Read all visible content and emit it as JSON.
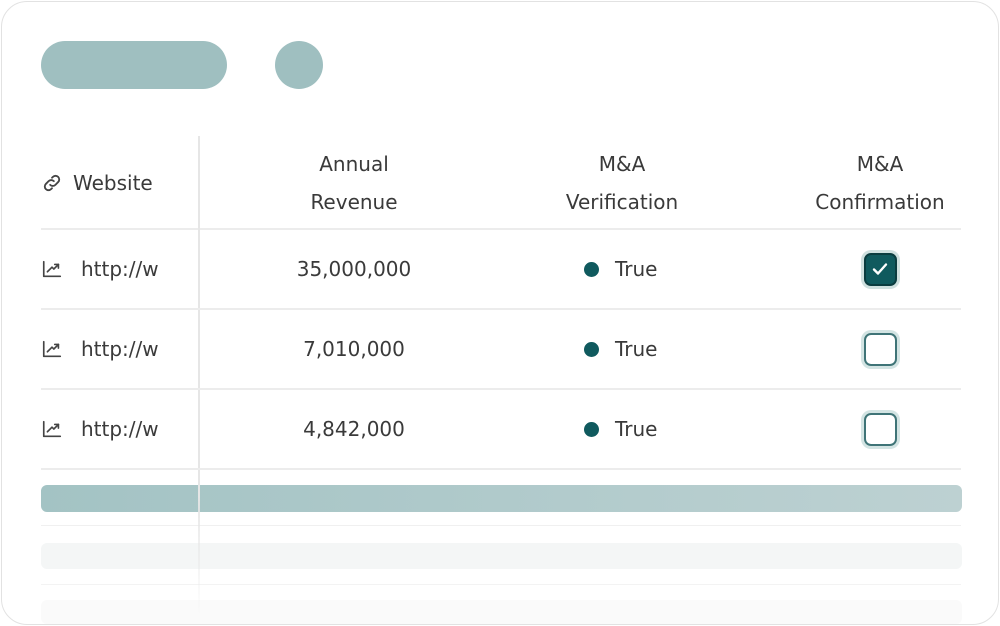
{
  "table": {
    "headers": [
      "Website",
      "Annual Revenue",
      "M&A Verification",
      "M&A Confirmation"
    ],
    "rows": [
      {
        "website": "http://w",
        "revenue": "35,000,000",
        "verification": "True",
        "confirmed": true
      },
      {
        "website": "http://w",
        "revenue": "7,010,000",
        "verification": "True",
        "confirmed": false
      },
      {
        "website": "http://w",
        "revenue": "4,842,000",
        "verification": "True",
        "confirmed": false
      }
    ]
  }
}
